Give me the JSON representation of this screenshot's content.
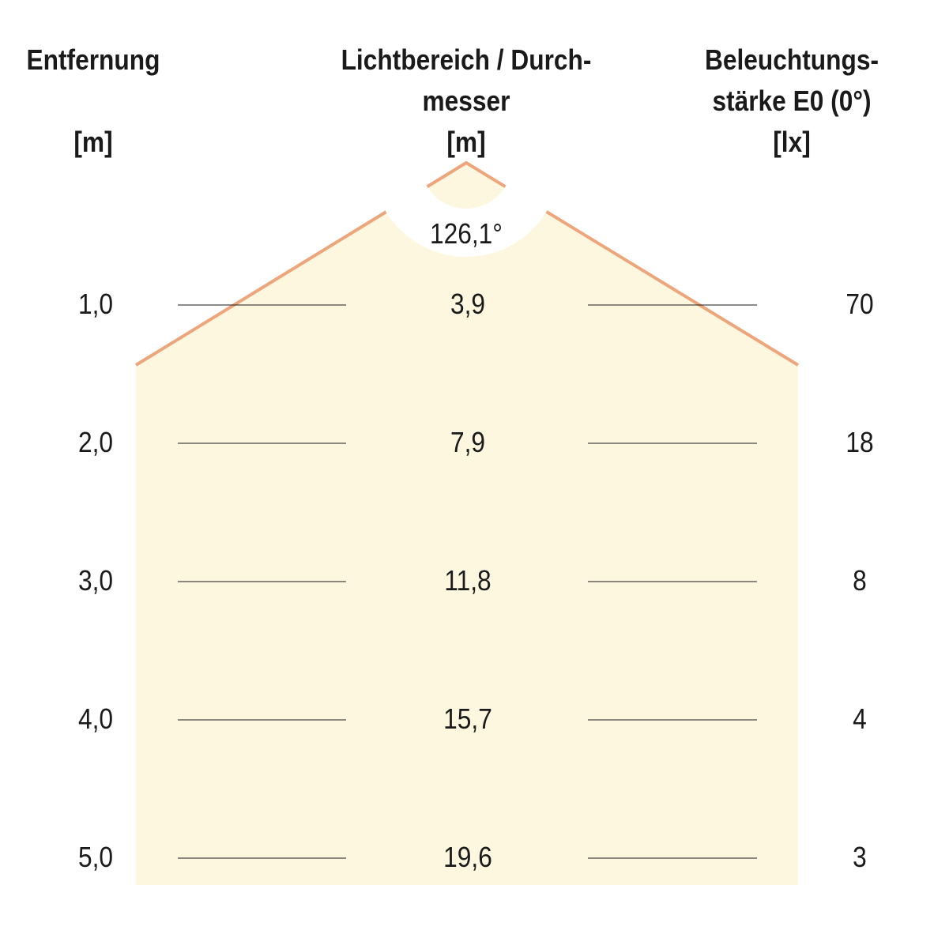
{
  "headers": {
    "distance": {
      "line1": "Entfernung",
      "line2": "",
      "unit": "[m]"
    },
    "diameter": {
      "line1": "Lichtbereich / Durch-",
      "line2": "messer",
      "unit": "[m]"
    },
    "illuminance": {
      "line1": "Beleuchtungs-",
      "line2": "stärke E0 (0°)",
      "unit": "[lx]"
    }
  },
  "beam_angle": "126,1°",
  "rows": [
    {
      "distance": "1,0",
      "diameter": "3,9",
      "lux": "70"
    },
    {
      "distance": "2,0",
      "diameter": "7,9",
      "lux": "18"
    },
    {
      "distance": "3,0",
      "diameter": "11,8",
      "lux": "8"
    },
    {
      "distance": "4,0",
      "diameter": "15,7",
      "lux": "4"
    },
    {
      "distance": "5,0",
      "diameter": "19,6",
      "lux": "3"
    }
  ],
  "colors": {
    "beam_fill": "#fdf7e0",
    "beam_edge": "#eda57c",
    "text": "#1a1a1a"
  }
}
